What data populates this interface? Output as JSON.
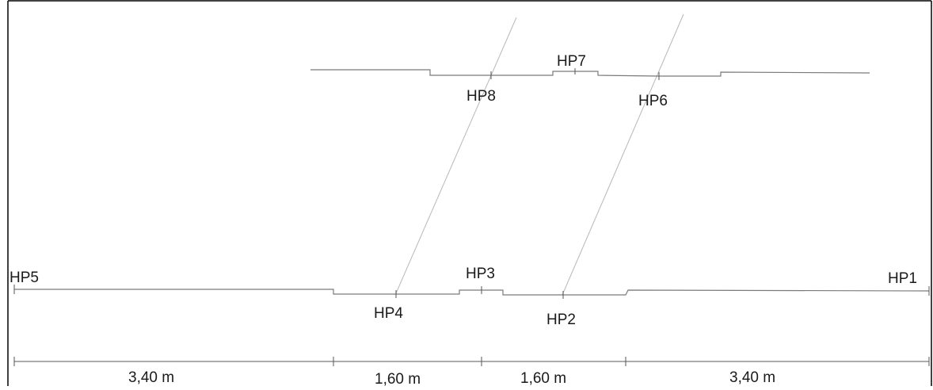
{
  "points": {
    "hp1": "HP1",
    "hp2": "HP2",
    "hp3": "HP3",
    "hp4": "HP4",
    "hp5": "HP5",
    "hp6": "HP6",
    "hp7": "HP7",
    "hp8": "HP8"
  },
  "dimensions": [
    "3,40 m",
    "1,60 m",
    "1,60 m",
    "3,40 m"
  ],
  "colors": {
    "profile_line": "#7a7a7a",
    "skew_line": "#b8b8b8",
    "text": "#1a1a1a",
    "border": "#000000"
  }
}
